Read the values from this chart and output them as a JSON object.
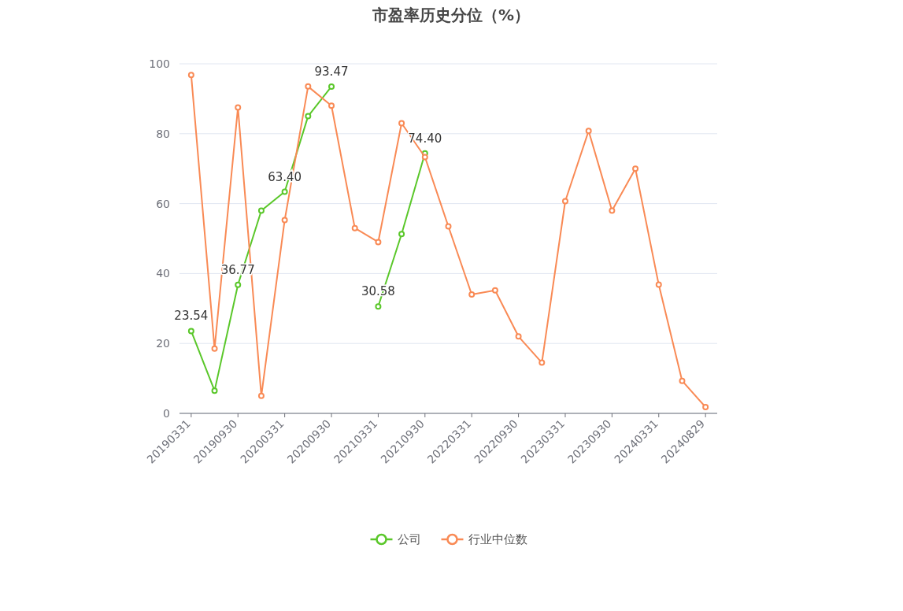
{
  "chart_data": {
    "type": "line",
    "title": "市盈率历史分位（%）",
    "categories": [
      "20190331",
      null,
      "20190930",
      null,
      "20200331",
      null,
      "20200930",
      null,
      "20210331",
      null,
      "20210930",
      null,
      "20220331",
      null,
      "20220930",
      null,
      "20230331",
      null,
      "20230930",
      null,
      "20240331",
      null,
      "20240829"
    ],
    "series": [
      {
        "name": "公司",
        "color": "#5ac72a",
        "values": [
          23.54,
          6.5,
          36.77,
          58,
          63.4,
          85,
          93.47,
          null,
          30.58,
          51.3,
          74.4,
          null,
          null,
          null,
          null,
          null,
          null,
          null,
          null,
          null,
          null,
          null,
          null
        ],
        "value_labels": [
          "23.54",
          null,
          "36.77",
          null,
          "63.40",
          null,
          "93.47",
          null,
          "30.58",
          null,
          "74.40",
          null,
          null,
          null,
          null,
          null,
          null,
          null,
          null,
          null,
          null,
          null,
          null
        ]
      },
      {
        "name": "行业中位数",
        "color": "#f98a55",
        "values": [
          96.8,
          18.5,
          87.5,
          5,
          55.3,
          93.5,
          88,
          53,
          49,
          83,
          73.3,
          53.5,
          34,
          35.2,
          22,
          14.5,
          60.7,
          80.8,
          58,
          70,
          36.8,
          9.3,
          1.8
        ]
      }
    ],
    "ylim": [
      0,
      100
    ],
    "yticks": [
      0,
      20,
      40,
      60,
      80,
      100
    ],
    "grid": "y",
    "legend": "bottom",
    "marker": "circle",
    "line_style": "solid"
  }
}
